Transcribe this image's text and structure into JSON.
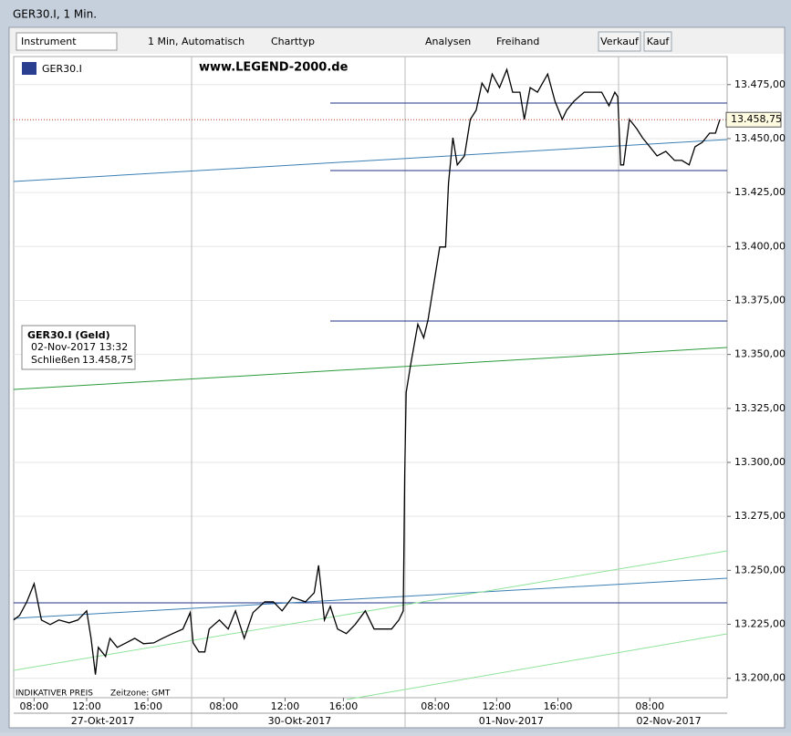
{
  "window": {
    "title": "GER30.I, 1 Min."
  },
  "toolbar": {
    "instrument": "Instrument",
    "interval": "1 Min,  Automatisch",
    "chart_type": "Charttyp",
    "analyses": "Analysen",
    "freehand": "Freihand",
    "sell": "Verkauf",
    "buy": "Kauf"
  },
  "chart_header": {
    "symbol": "GER30.I",
    "watermark": "www.LEGEND-2000.de"
  },
  "info_box": {
    "title": "GER30.I (Geld)",
    "datetime": "02-Nov-2017 13:32",
    "close_label": "Schließen",
    "close_value": "13.458,75"
  },
  "footer": {
    "note": "INDIKATIVER PREIS",
    "timezone": "Zeitzone: GMT"
  },
  "chart_data": {
    "type": "line",
    "color": "#000000",
    "x": [
      0,
      0.4,
      0.9,
      1.4,
      1.9,
      2.5,
      3.1,
      3.8,
      4.4,
      5.0,
      5.3,
      5.6,
      5.8,
      6.3,
      6.6,
      7.1,
      7.7,
      8.3,
      8.9,
      9.6,
      10.2,
      10.9,
      11.6,
      12.1,
      12.3,
      12.7,
      13.1,
      13.4,
      14.1,
      14.7,
      15.2,
      15.8,
      16.4,
      17.2,
      17.8,
      18.4,
      19.1,
      20.0,
      20.6,
      20.9,
      21.3,
      21.7,
      22.2,
      22.8,
      23.4,
      24.1,
      24.7,
      25.3,
      25.9,
      26.4,
      26.7,
      26.8,
      26.9,
      27.2,
      27.7,
      28.1,
      28.4,
      28.9,
      29.2,
      29.6,
      29.8,
      30.1,
      30.4,
      30.9,
      31.3,
      31.7,
      32.1,
      32.5,
      32.8,
      33.3,
      33.8,
      34.2,
      34.7,
      35.0,
      35.4,
      35.9,
      36.6,
      37.1,
      37.6,
      37.9,
      38.4,
      39.1,
      39.7,
      40.3,
      40.8,
      41.2,
      41.4,
      41.6,
      41.8,
      42.2,
      42.7,
      43.1,
      43.6,
      44.1,
      44.7,
      45.3,
      45.8,
      46.3,
      46.7,
      47.2,
      47.7,
      48.1,
      48.4
    ],
    "values": [
      13227.0,
      13229.1,
      13235.4,
      13243.8,
      13227.0,
      13224.9,
      13227.0,
      13225.7,
      13227.0,
      13231.2,
      13218.5,
      13201.7,
      13214.3,
      13210.1,
      13218.5,
      13214.3,
      13216.4,
      13218.5,
      13216.0,
      13216.4,
      13218.5,
      13220.7,
      13222.8,
      13230.4,
      13216.4,
      13212.2,
      13212.2,
      13222.8,
      13227.0,
      13222.8,
      13231.2,
      13218.5,
      13230.4,
      13235.4,
      13235.4,
      13231.2,
      13237.5,
      13235.4,
      13239.6,
      13252.3,
      13227.0,
      13233.3,
      13222.8,
      13220.7,
      13224.9,
      13231.2,
      13222.8,
      13222.8,
      13222.8,
      13227.0,
      13231.2,
      13294.4,
      13332.4,
      13345.0,
      13364.0,
      13357.7,
      13366.1,
      13387.2,
      13399.8,
      13399.8,
      13429.3,
      13450.4,
      13437.8,
      13442.0,
      13458.9,
      13463.1,
      13475.7,
      13471.5,
      13479.9,
      13473.6,
      13482.0,
      13471.5,
      13471.5,
      13458.9,
      13473.6,
      13471.5,
      13479.9,
      13467.3,
      13458.9,
      13463.1,
      13467.3,
      13471.5,
      13471.5,
      13471.5,
      13465.2,
      13471.5,
      13469.4,
      13437.8,
      13437.8,
      13458.9,
      13454.6,
      13450.4,
      13446.2,
      13442.0,
      13444.1,
      13439.9,
      13439.9,
      13437.8,
      13446.2,
      13448.3,
      13452.5,
      13452.5,
      13458.75
    ],
    "xlim": [
      0,
      48.9
    ],
    "ylim": [
      13191,
      13488
    ],
    "yticks": [
      {
        "value": 13200,
        "label": "13.200,00"
      },
      {
        "value": 13225,
        "label": "13.225,00"
      },
      {
        "value": 13250,
        "label": "13.250,00"
      },
      {
        "value": 13275,
        "label": "13.275,00"
      },
      {
        "value": 13300,
        "label": "13.300,00"
      },
      {
        "value": 13325,
        "label": "13.325,00"
      },
      {
        "value": 13350,
        "label": "13.350,00"
      },
      {
        "value": 13375,
        "label": "13.375,00"
      },
      {
        "value": 13400,
        "label": "13.400,00"
      },
      {
        "value": 13425,
        "label": "13.425,00"
      },
      {
        "value": 13450,
        "label": "13.450,00"
      },
      {
        "value": 13475,
        "label": "13.475,00"
      }
    ],
    "xticks": [
      {
        "value": 1.4,
        "label": "08:00"
      },
      {
        "value": 5.0,
        "label": "12:00"
      },
      {
        "value": 9.2,
        "label": "16:00"
      },
      {
        "value": 14.4,
        "label": "08:00"
      },
      {
        "value": 18.6,
        "label": "12:00"
      },
      {
        "value": 22.6,
        "label": "16:00"
      },
      {
        "value": 28.9,
        "label": "08:00"
      },
      {
        "value": 33.1,
        "label": "12:00"
      },
      {
        "value": 37.3,
        "label": "16:00"
      },
      {
        "value": 43.6,
        "label": "08:00"
      }
    ],
    "date_ticks": [
      {
        "value": 6.1,
        "label": "27-Okt-2017"
      },
      {
        "value": 19.6,
        "label": "30-Okt-2017"
      },
      {
        "value": 34.1,
        "label": "01-Nov-2017"
      },
      {
        "value": 44.9,
        "label": "02-Nov-2017"
      }
    ],
    "last_price": {
      "value": 13458.75,
      "label": "13.458,75"
    },
    "grid": true
  }
}
